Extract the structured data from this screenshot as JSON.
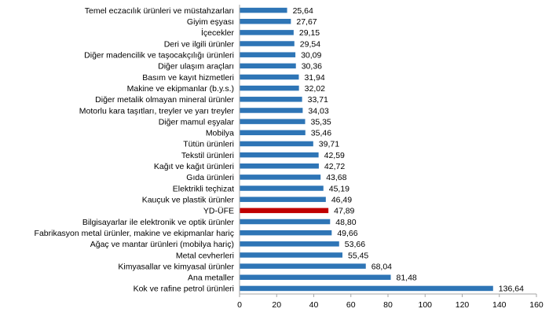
{
  "chart_data": {
    "type": "bar",
    "orientation": "horizontal",
    "categories": [
      "Temel eczacılık ürünleri ve müstahzarları",
      "Giyim eşyası",
      "İçecekler",
      "Deri ve ilgili ürünler",
      "Diğer madencilik ve taşocakçılığı ürünleri",
      "Diğer ulaşım araçları",
      "Basım ve kayıt hizmetleri",
      "Makine ve ekipmanlar (b.y.s.)",
      "Diğer metalik olmayan mineral ürünler",
      "Motorlu kara taşıtları, treyler ve yarı treyler",
      "Diğer mamul eşyalar",
      "Mobilya",
      "Tütün ürünleri",
      "Tekstil ürünleri",
      "Kağıt ve kağıt ürünleri",
      "Gıda ürünleri",
      "Elektrikli teçhizat",
      "Kauçuk ve plastik ürünler",
      "YD-ÜFE",
      "Bilgisayarlar ile elektronik ve optik ürünler",
      "Fabrikasyon metal ürünler, makine ve ekipmanlar hariç",
      "Ağaç ve mantar ürünleri (mobilya hariç)",
      "Metal cevherleri",
      "Kimyasallar ve kimyasal ürünler",
      "Ana metaller",
      "Kok ve rafine petrol ürünleri"
    ],
    "values": [
      25.64,
      27.67,
      29.15,
      29.54,
      30.09,
      30.36,
      31.94,
      32.02,
      33.71,
      34.03,
      35.35,
      35.46,
      39.71,
      42.59,
      42.72,
      43.68,
      45.19,
      46.49,
      47.89,
      48.8,
      49.66,
      53.66,
      55.45,
      68.04,
      81.48,
      136.64
    ],
    "value_labels": [
      "25,64",
      "27,67",
      "29,15",
      "29,54",
      "30,09",
      "30,36",
      "31,94",
      "32,02",
      "33,71",
      "34,03",
      "35,35",
      "35,46",
      "39,71",
      "42,59",
      "42,72",
      "43,68",
      "45,19",
      "46,49",
      "47,89",
      "48,80",
      "49,66",
      "53,66",
      "55,45",
      "68,04",
      "81,48",
      "136,64"
    ],
    "highlight_index": 18,
    "xlim": [
      0,
      160
    ],
    "x_ticks": [
      0,
      20,
      40,
      60,
      80,
      100,
      120,
      140,
      160
    ],
    "grid": false,
    "legend": "none",
    "colors": {
      "bar": "#2E75B6",
      "highlight": "#C00000",
      "axis": "#A6A6A6",
      "text": "#000000"
    }
  }
}
